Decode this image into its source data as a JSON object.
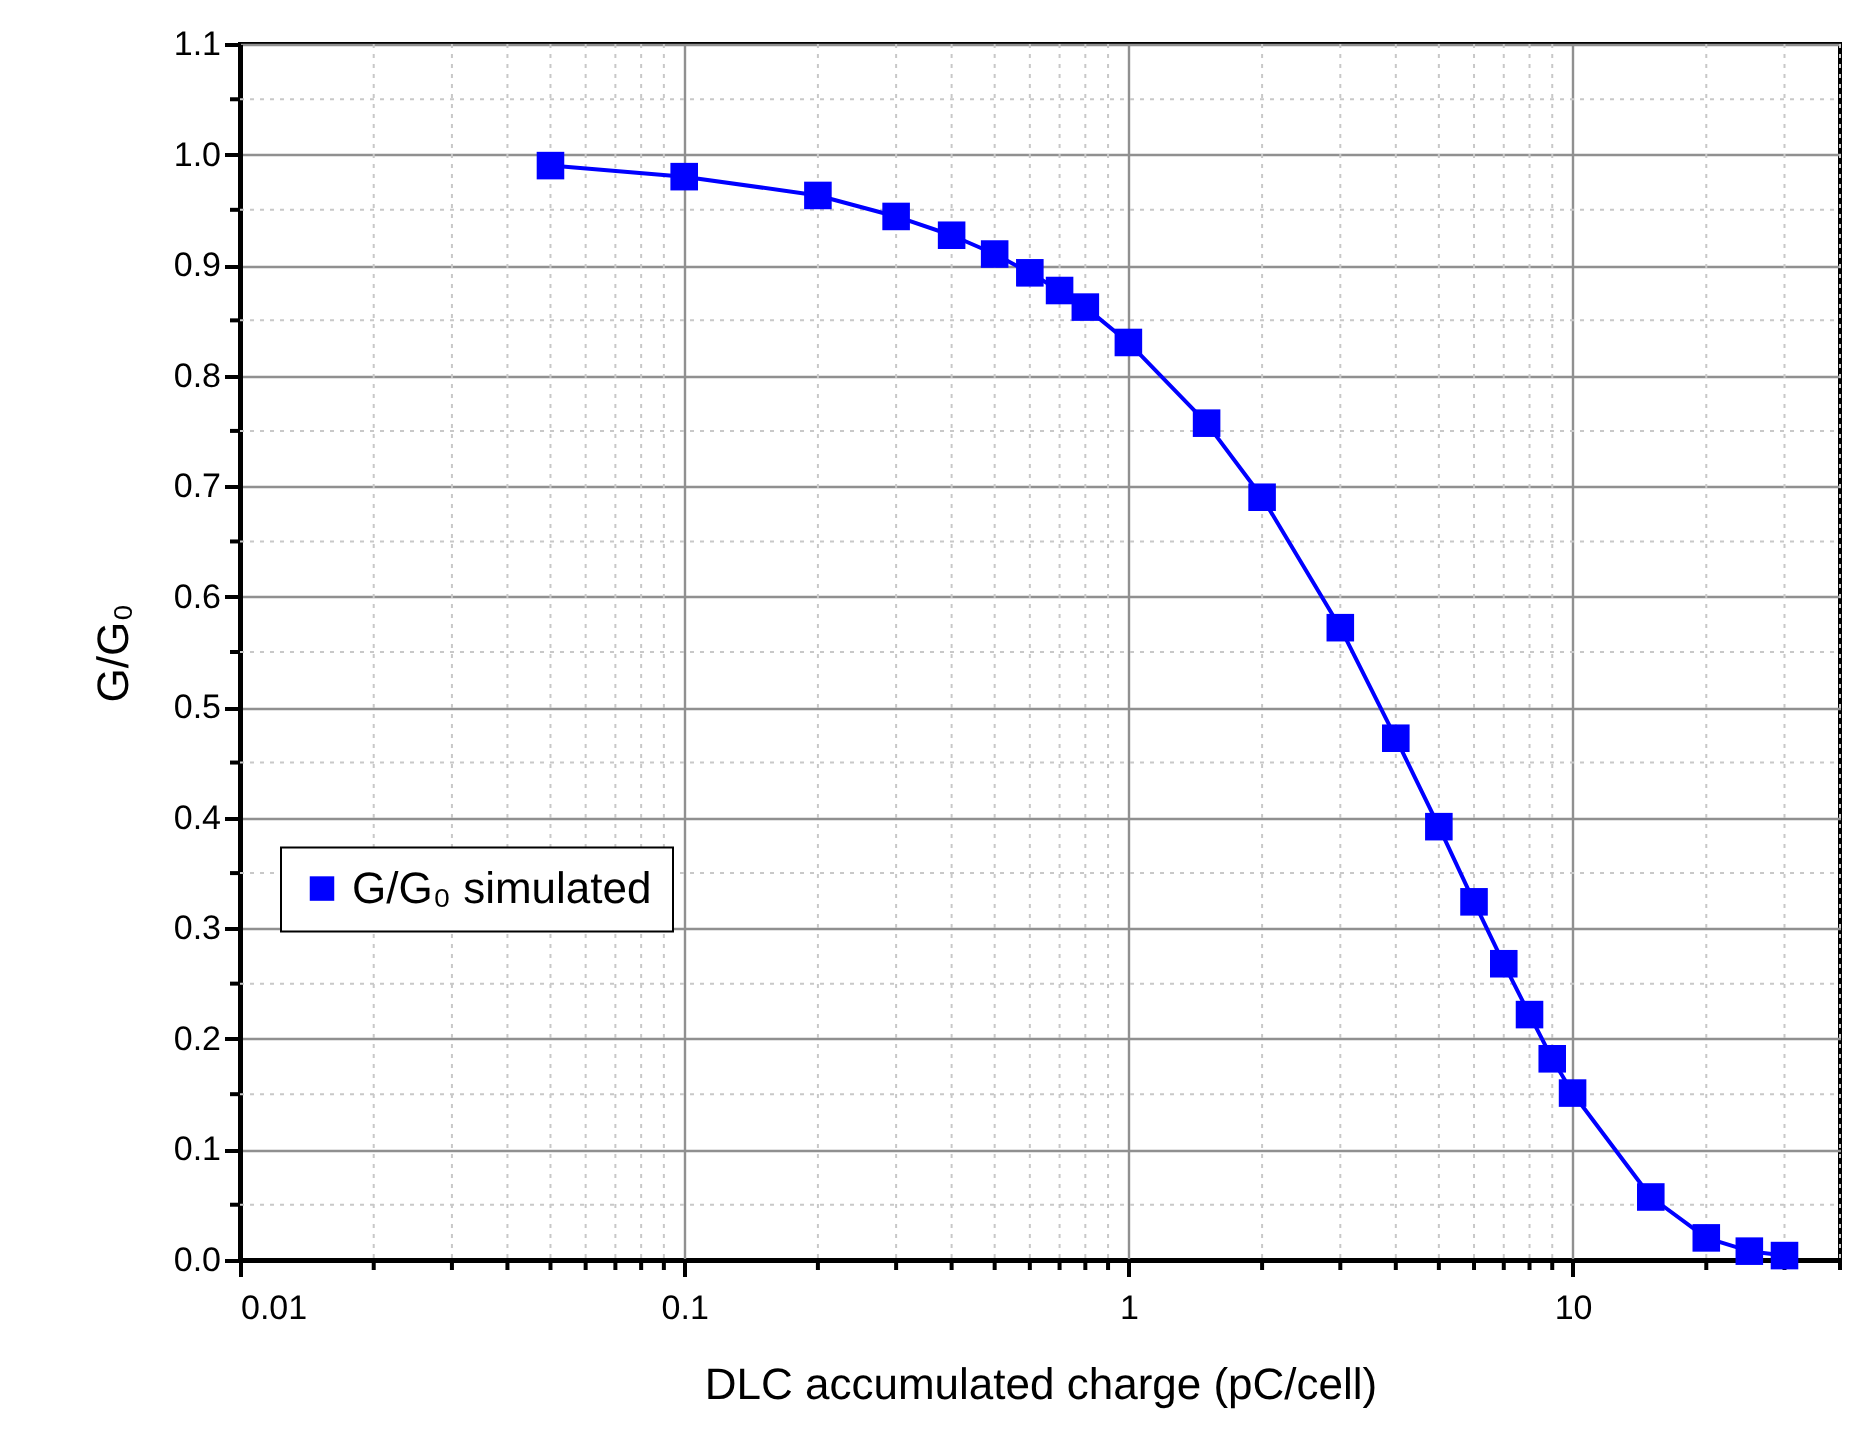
{
  "chart_data": {
    "type": "line",
    "xlabel": "DLC accumulated charge (pC/cell)",
    "ylabel": "G/G₀",
    "x": [
      0.05,
      0.1,
      0.2,
      0.3,
      0.4,
      0.5,
      0.6,
      0.7,
      0.8,
      1,
      1.5,
      2,
      3,
      4,
      5,
      6,
      7,
      8,
      9,
      10,
      15,
      20,
      25,
      30
    ],
    "series": [
      {
        "name": "G/G₀ simulated",
        "color": "#0000ff",
        "values": [
          0.99,
          0.98,
          0.963,
          0.944,
          0.927,
          0.91,
          0.893,
          0.877,
          0.862,
          0.83,
          0.757,
          0.69,
          0.572,
          0.472,
          0.392,
          0.324,
          0.268,
          0.222,
          0.182,
          0.151,
          0.057,
          0.02,
          0.008,
          0.004
        ]
      }
    ],
    "log": "x",
    "xlim": [
      0.01,
      40
    ],
    "xticks": [
      0.01,
      0.1,
      1,
      10
    ],
    "ylim": [
      0,
      1.1
    ],
    "yticks": [
      {
        "value": 0,
        "label": "0.0"
      },
      0.1,
      0.2,
      0.3,
      0.4,
      0.5,
      0.6,
      0.7,
      0.8,
      0.9,
      {
        "value": 1,
        "label": "1.0"
      },
      1.1
    ],
    "grid": true,
    "legend": "left",
    "marker": "square",
    "line_style": "solid"
  }
}
